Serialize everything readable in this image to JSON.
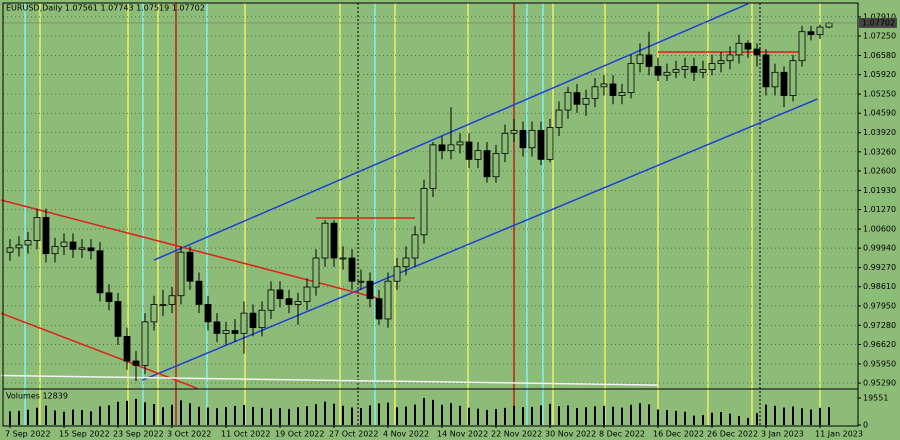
{
  "chart_data": {
    "type": "candlestick",
    "title": "EURUSD,Daily  1.07561 1.07743 1.07519 1.07702",
    "volume_title": "Volumes 12839",
    "categories": [
      "7 Sep 2022",
      null,
      null,
      null,
      null,
      null,
      "15 Sep 2022",
      null,
      null,
      null,
      null,
      null,
      "23 Sep 2022",
      null,
      null,
      null,
      null,
      null,
      "3 Oct 2022",
      null,
      null,
      null,
      null,
      null,
      "11 Oct 2022",
      null,
      null,
      null,
      null,
      null,
      "19 Oct 2022",
      null,
      null,
      null,
      null,
      null,
      "27 Oct 2022",
      null,
      null,
      null,
      null,
      null,
      "4 Nov 2022",
      null,
      null,
      null,
      null,
      null,
      "14 Nov 2022",
      null,
      null,
      null,
      null,
      null,
      "22 Nov 2022",
      null,
      null,
      null,
      null,
      null,
      "30 Nov 2022",
      null,
      null,
      null,
      null,
      null,
      "8 Dec 2022",
      null,
      null,
      null,
      null,
      null,
      "16 Dec 2022",
      null,
      null,
      null,
      null,
      null,
      "26 Dec 2022",
      null,
      null,
      null,
      null,
      null,
      "3 Jan 2023",
      null,
      null,
      null,
      null,
      null,
      "11 Jan 2023",
      null
    ],
    "open": [
      0.998,
      0.9995,
      1.0005,
      1.002,
      1.01,
      0.9975,
      1.0,
      1.0015,
      0.999,
      0.9995,
      0.9985,
      0.984,
      0.981,
      0.969,
      0.9605,
      0.959,
      0.974,
      0.98,
      0.98,
      0.983,
      0.998,
      0.988,
      0.98,
      0.974,
      0.97,
      0.971,
      0.97,
      0.977,
      0.972,
      0.978,
      0.985,
      0.982,
      0.98,
      0.981,
      0.986,
      0.996,
      1.008,
      0.996,
      0.996,
      0.988,
      0.988,
      0.982,
      0.975,
      0.988,
      0.993,
      0.996,
      1.004,
      1.02,
      1.035,
      1.033,
      1.035,
      1.036,
      1.03,
      1.033,
      1.024,
      1.032,
      1.039,
      1.04,
      1.034,
      1.04,
      1.03,
      1.041,
      1.047,
      1.053,
      1.049,
      1.051,
      1.055,
      1.056,
      1.052,
      1.053,
      1.063,
      1.066,
      1.062,
      1.059,
      1.06,
      1.061,
      1.062,
      1.06,
      1.061,
      1.063,
      1.064,
      1.066,
      1.07,
      1.068,
      1.066,
      1.055,
      1.06,
      1.052,
      1.064,
      1.074,
      1.073,
      1.0756
    ],
    "high": [
      1.0025,
      1.0035,
      1.005,
      1.013,
      1.013,
      1.003,
      1.0045,
      1.0045,
      1.0025,
      1.0025,
      1.0015,
      0.987,
      0.984,
      0.972,
      0.964,
      0.977,
      0.983,
      0.985,
      0.986,
      1.0,
      1.0,
      0.991,
      0.983,
      0.977,
      0.974,
      0.975,
      0.981,
      0.98,
      0.981,
      0.988,
      0.988,
      0.985,
      0.984,
      0.989,
      0.999,
      1.009,
      1.009,
      1.0,
      0.999,
      0.992,
      0.991,
      0.985,
      0.991,
      0.996,
      1.0,
      1.007,
      1.023,
      1.036,
      1.038,
      1.048,
      1.039,
      1.039,
      1.036,
      1.036,
      1.035,
      1.042,
      1.044,
      1.043,
      1.043,
      1.043,
      1.044,
      1.05,
      1.055,
      1.056,
      1.054,
      1.058,
      1.059,
      1.059,
      1.056,
      1.066,
      1.07,
      1.074,
      1.065,
      1.063,
      1.064,
      1.065,
      1.065,
      1.064,
      1.066,
      1.067,
      1.069,
      1.073,
      1.071,
      1.07,
      1.068,
      1.063,
      1.062,
      1.066,
      1.076,
      1.076,
      1.0765,
      1.0774
    ],
    "low": [
      0.995,
      0.9965,
      0.9975,
      0.999,
      0.9945,
      0.9945,
      0.997,
      0.996,
      0.996,
      0.9955,
      0.981,
      0.978,
      0.966,
      0.9575,
      0.9536,
      0.956,
      0.971,
      0.976,
      0.977,
      0.98,
      0.985,
      0.977,
      0.971,
      0.967,
      0.966,
      0.967,
      0.963,
      0.969,
      0.969,
      0.975,
      0.979,
      0.977,
      0.973,
      0.978,
      0.983,
      0.993,
      0.993,
      0.992,
      0.985,
      0.985,
      0.979,
      0.973,
      0.972,
      0.985,
      0.99,
      0.993,
      1.001,
      1.017,
      1.03,
      1.03,
      1.032,
      1.027,
      1.027,
      1.022,
      1.022,
      1.029,
      1.036,
      1.031,
      1.031,
      1.028,
      1.029,
      1.038,
      1.044,
      1.046,
      1.045,
      1.048,
      1.052,
      1.049,
      1.049,
      1.051,
      1.06,
      1.059,
      1.057,
      1.057,
      1.058,
      1.058,
      1.057,
      1.058,
      1.059,
      1.06,
      1.061,
      1.063,
      1.065,
      1.062,
      1.052,
      1.052,
      1.048,
      1.05,
      1.062,
      1.071,
      1.0715,
      1.0752
    ],
    "close": [
      0.9995,
      1.0005,
      1.002,
      1.01,
      0.9975,
      1.0,
      1.0015,
      0.999,
      0.9995,
      0.9985,
      0.984,
      0.981,
      0.969,
      0.9605,
      0.959,
      0.974,
      0.98,
      0.98,
      0.983,
      0.998,
      0.988,
      0.98,
      0.974,
      0.97,
      0.971,
      0.97,
      0.977,
      0.972,
      0.978,
      0.985,
      0.982,
      0.98,
      0.981,
      0.986,
      0.996,
      1.008,
      0.996,
      0.996,
      0.988,
      0.988,
      0.982,
      0.975,
      0.988,
      0.993,
      0.996,
      1.004,
      1.02,
      1.035,
      1.033,
      1.035,
      1.036,
      1.03,
      1.033,
      1.024,
      1.032,
      1.039,
      1.04,
      1.034,
      1.04,
      1.03,
      1.041,
      1.047,
      1.053,
      1.049,
      1.051,
      1.055,
      1.056,
      1.052,
      1.053,
      1.063,
      1.066,
      1.062,
      1.059,
      1.06,
      1.061,
      1.062,
      1.06,
      1.061,
      1.063,
      1.064,
      1.066,
      1.07,
      1.068,
      1.066,
      1.055,
      1.06,
      1.052,
      1.064,
      1.074,
      1.073,
      1.0756,
      1.077
    ],
    "volume": [
      9800,
      10200,
      11000,
      12500,
      14000,
      10500,
      9600,
      11200,
      10800,
      9900,
      13500,
      14200,
      16800,
      17500,
      18900,
      16400,
      15200,
      12800,
      14600,
      17800,
      15800,
      13200,
      12600,
      12100,
      12900,
      13800,
      14500,
      13100,
      12400,
      11800,
      12200,
      11500,
      12800,
      13600,
      15100,
      16900,
      15400,
      13900,
      12700,
      12300,
      14200,
      15600,
      16200,
      12800,
      13300,
      14800,
      19551,
      18200,
      14600,
      15800,
      13900,
      12500,
      11800,
      10900,
      11600,
      12400,
      13800,
      12900,
      13100,
      14200,
      15300,
      13600,
      14100,
      12300,
      12800,
      13500,
      13900,
      13200,
      12600,
      14600,
      15800,
      14900,
      11200,
      10800,
      10200,
      9600,
      6800,
      7200,
      8900,
      9400,
      8200,
      6500,
      5100,
      8600,
      14800,
      13900,
      12600,
      13400,
      12100,
      11200,
      12400,
      12839
    ],
    "up_color": "#8cbc78",
    "down_color": "#000000",
    "ylim": [
      0.9512,
      1.0832
    ],
    "yticks": [
      {
        "value": 1.0791,
        "label": "1.07910"
      },
      {
        "value": 1.0725,
        "label": "1.07250"
      },
      {
        "value": 1.0658,
        "label": "1.06580"
      },
      {
        "value": 1.0592,
        "label": "1.05920"
      },
      {
        "value": 1.0525,
        "label": "1.05250"
      },
      {
        "value": 1.0459,
        "label": "1.04590"
      },
      {
        "value": 1.0392,
        "label": "1.03920"
      },
      {
        "value": 1.0326,
        "label": "1.03260"
      },
      {
        "value": 1.026,
        "label": "1.02600"
      },
      {
        "value": 1.0193,
        "label": "1.01930"
      },
      {
        "value": 1.0127,
        "label": "1.01270"
      },
      {
        "value": 1.006,
        "label": "1.00600"
      },
      {
        "value": 0.9994,
        "label": "0.99940"
      },
      {
        "value": 0.9927,
        "label": "0.99270"
      },
      {
        "value": 0.9861,
        "label": "0.98610"
      },
      {
        "value": 0.9795,
        "label": "0.97950"
      },
      {
        "value": 0.9728,
        "label": "0.97280"
      },
      {
        "value": 0.9662,
        "label": "0.96620"
      },
      {
        "value": 0.9595,
        "label": "0.95950"
      },
      {
        "value": 0.9529,
        "label": "0.95290"
      }
    ],
    "vlim": [
      0,
      19551
    ],
    "vticks": [
      0,
      19551
    ],
    "last_price": {
      "value": 1.07702,
      "label": "1.07702"
    },
    "grid": true,
    "lines": [
      {
        "color": "#1f3fd6",
        "x": [
          16,
          82
        ],
        "values": [
          0.9953,
          1.0836
        ]
      },
      {
        "color": "#1f3fd6",
        "x": [
          14.7,
          89.7
        ],
        "values": [
          0.9539,
          1.0508
        ]
      },
      {
        "color": "#e0201a",
        "x": [
          -1,
          40.8
        ],
        "values": [
          1.016,
          0.9822
        ]
      },
      {
        "color": "#e0201a",
        "x": [
          -1,
          20.8
        ],
        "values": [
          0.977,
          0.9511
        ]
      },
      {
        "color": "#e0201a",
        "x": [
          34,
          45
        ],
        "values": [
          1.0098,
          1.0098
        ]
      },
      {
        "color": "#e0201a",
        "x": [
          72,
          88
        ],
        "values": [
          1.067,
          1.067
        ]
      },
      {
        "color": "#f4f4f4",
        "x": [
          -1,
          72
        ],
        "values": [
          0.9555,
          0.9522
        ]
      }
    ]
  }
}
